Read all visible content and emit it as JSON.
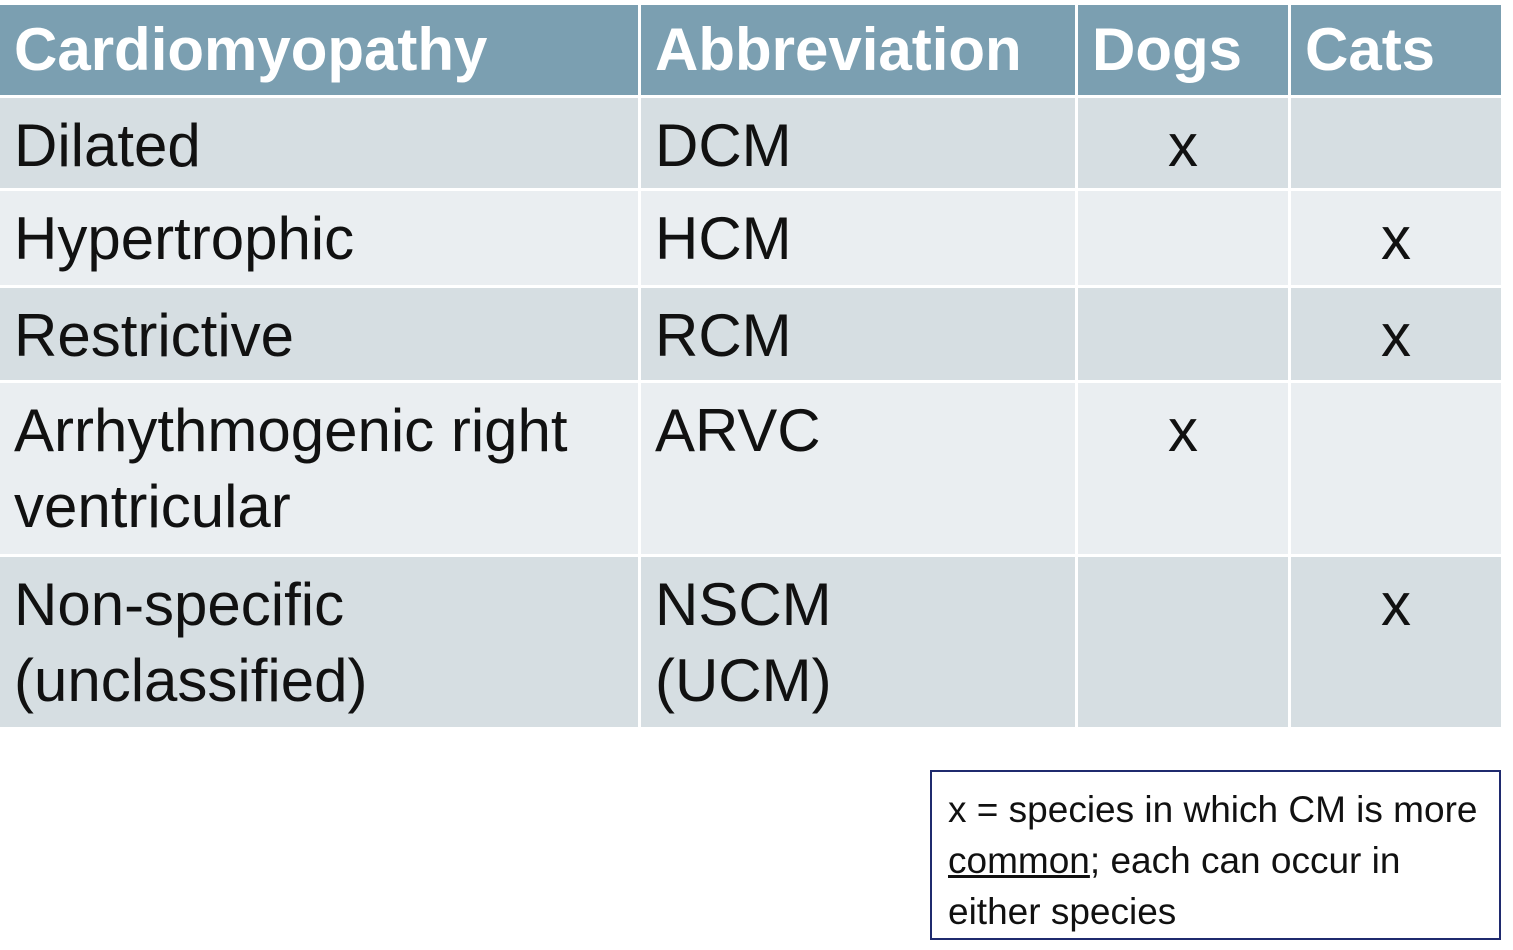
{
  "table": {
    "header": [
      "Cardiomyopathy",
      "Abbreviation",
      "Dogs",
      "Cats"
    ],
    "rows": [
      [
        "Dilated",
        "DCM",
        "x",
        null
      ],
      [
        "Hypertrophic",
        "HCM",
        null,
        "x"
      ],
      [
        "Restrictive",
        "RCM",
        null,
        "x"
      ],
      [
        "Arrhythmogenic right ventricular",
        "ARVC",
        "x",
        null
      ],
      [
        "Non-specific (unclassified)",
        "NSCM\n(UCM)",
        null,
        "x"
      ]
    ]
  },
  "note": {
    "parts": [
      "x = species in which CM is more ",
      "common",
      "; each can occur in either species"
    ]
  }
}
